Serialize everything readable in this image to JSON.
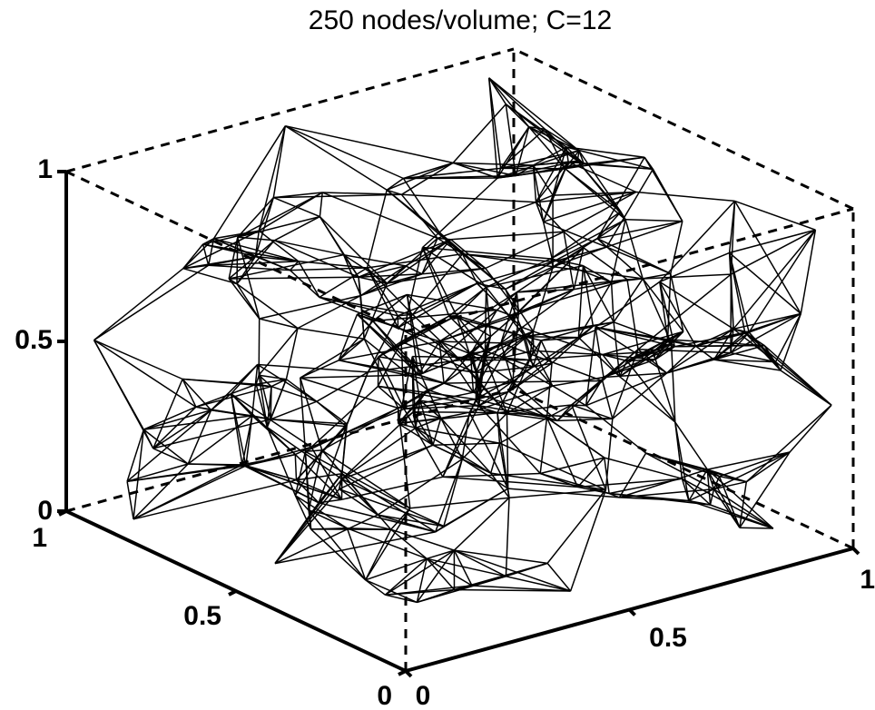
{
  "chart_data": {
    "type": "3d-line-network",
    "title": "250 nodes/volume; C=12",
    "xlim": [
      0,
      1
    ],
    "ylim": [
      0,
      1
    ],
    "zlim": [
      0,
      1
    ],
    "x_ticks": [
      "0",
      "0.5",
      "1"
    ],
    "y_ticks": [
      "0",
      "0.5",
      "1"
    ],
    "z_ticks": [
      "0",
      "0.5",
      "1"
    ],
    "grid": false,
    "box": "dashed",
    "line_color": "#000000",
    "nodes": 250,
    "connectivity": 12
  }
}
